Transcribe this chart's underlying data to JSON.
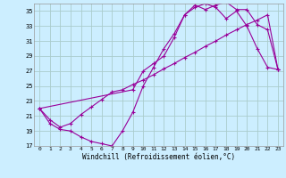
{
  "xlabel": "Windchill (Refroidissement éolien,°C)",
  "bg_color": "#cceeff",
  "line_color": "#990099",
  "grid_color": "#aacccc",
  "xlim": [
    -0.5,
    23.5
  ],
  "ylim": [
    17,
    36
  ],
  "yticks": [
    17,
    19,
    21,
    23,
    25,
    27,
    29,
    31,
    33,
    35
  ],
  "xticks": [
    0,
    1,
    2,
    3,
    4,
    5,
    6,
    7,
    8,
    9,
    10,
    11,
    12,
    13,
    14,
    15,
    16,
    17,
    18,
    19,
    20,
    21,
    22,
    23
  ],
  "line1_x": [
    0,
    1,
    2,
    3,
    4,
    5,
    6,
    7,
    8,
    9,
    10,
    11,
    12,
    13,
    14,
    15,
    16,
    17,
    18,
    19,
    20,
    21,
    22,
    23
  ],
  "line1_y": [
    22.0,
    20.0,
    19.2,
    19.0,
    18.2,
    17.6,
    17.3,
    17.0,
    19.0,
    21.5,
    25.0,
    27.5,
    30.0,
    32.0,
    34.5,
    35.5,
    36.0,
    35.5,
    34.0,
    35.0,
    33.0,
    30.0,
    27.5,
    27.2
  ],
  "line2_x": [
    0,
    9,
    10,
    11,
    12,
    13,
    14,
    15,
    16,
    17,
    18,
    19,
    20,
    21,
    22,
    23
  ],
  "line2_y": [
    22.0,
    24.5,
    27.0,
    28.0,
    29.0,
    31.5,
    34.5,
    35.8,
    35.2,
    35.8,
    36.2,
    35.2,
    35.2,
    33.2,
    32.5,
    27.2
  ],
  "line3_x": [
    0,
    1,
    2,
    3,
    4,
    5,
    6,
    7,
    8,
    9,
    10,
    11,
    12,
    13,
    14,
    15,
    16,
    17,
    18,
    19,
    20,
    21,
    22,
    23
  ],
  "line3_y": [
    22.0,
    20.5,
    19.5,
    20.0,
    21.2,
    22.2,
    23.2,
    24.2,
    24.5,
    25.2,
    25.8,
    26.5,
    27.3,
    28.0,
    28.8,
    29.5,
    30.3,
    31.0,
    31.8,
    32.5,
    33.2,
    33.8,
    34.5,
    27.2
  ]
}
